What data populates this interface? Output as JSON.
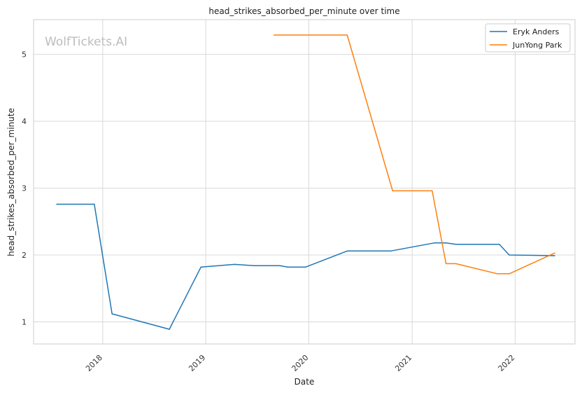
{
  "watermark": "WolfTickets.AI",
  "chart_data": {
    "type": "line",
    "title": "head_strikes_absorbed_per_minute over time",
    "xlabel": "Date",
    "ylabel": "head_strikes_absorbed_per_minute",
    "x_ticks": [
      "2018",
      "2019",
      "2020",
      "2021",
      "2022"
    ],
    "y_ticks": [
      1,
      2,
      3,
      4,
      5
    ],
    "xlim": [
      "2017-05-01",
      "2022-08-01"
    ],
    "ylim": [
      0.67,
      5.52
    ],
    "grid": true,
    "legend_position": "top-right",
    "series": [
      {
        "name": "Eryk Anders",
        "color": "#1f77b4",
        "points": [
          [
            "2017-07-22",
            2.76
          ],
          [
            "2017-12-02",
            2.76
          ],
          [
            "2018-02-03",
            1.12
          ],
          [
            "2018-08-25",
            0.89
          ],
          [
            "2018-12-15",
            1.82
          ],
          [
            "2019-04-13",
            1.86
          ],
          [
            "2019-06-22",
            1.84
          ],
          [
            "2019-09-21",
            1.84
          ],
          [
            "2019-10-18",
            1.82
          ],
          [
            "2019-12-21",
            1.82
          ],
          [
            "2020-05-16",
            2.06
          ],
          [
            "2020-10-17",
            2.06
          ],
          [
            "2021-03-20",
            2.18
          ],
          [
            "2021-05-01",
            2.18
          ],
          [
            "2021-06-05",
            2.16
          ],
          [
            "2021-11-06",
            2.16
          ],
          [
            "2021-12-11",
            2.0
          ],
          [
            "2022-05-21",
            1.99
          ]
        ]
      },
      {
        "name": "JunYong Park",
        "color": "#ff7f0e",
        "points": [
          [
            "2019-08-31",
            5.29
          ],
          [
            "2020-05-16",
            5.29
          ],
          [
            "2020-10-24",
            2.96
          ],
          [
            "2021-03-13",
            2.96
          ],
          [
            "2021-05-01",
            1.87
          ],
          [
            "2021-06-05",
            1.87
          ],
          [
            "2021-10-30",
            1.72
          ],
          [
            "2021-12-11",
            1.72
          ],
          [
            "2022-05-21",
            2.03
          ]
        ]
      }
    ]
  }
}
